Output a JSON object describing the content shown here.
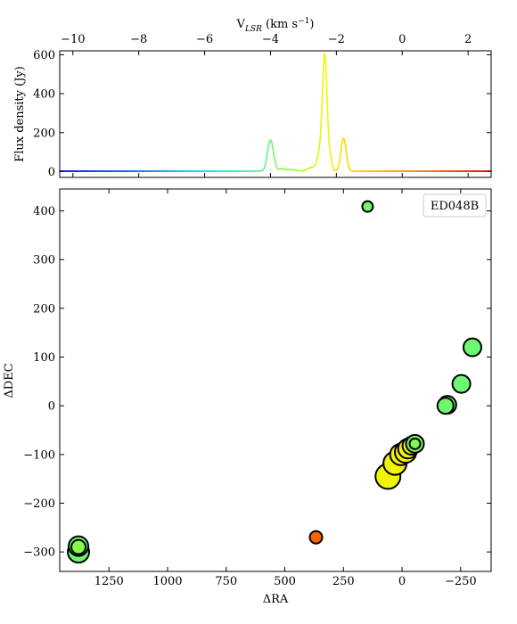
{
  "chart_data": [
    {
      "type": "line",
      "panel": "spectrum",
      "title": "",
      "xlabel_top_base": "V",
      "xlabel_top_sub": "LSR",
      "xlabel_top_units": " (km s",
      "xlabel_top_exp": "−1",
      "xlabel_top_close": ")",
      "ylabel": "Flux density (Jy)",
      "xlim": [
        -10.4,
        2.7
      ],
      "ylim": [
        -30,
        620
      ],
      "xticks": [
        -10,
        -8,
        -6,
        -4,
        -2,
        0,
        2
      ],
      "xtick_labels": [
        "−10",
        "−8",
        "−6",
        "−4",
        "−2",
        "0",
        "2"
      ],
      "yticks": [
        0,
        200,
        400,
        600
      ],
      "ytick_labels": [
        "0",
        "200",
        "400",
        "600"
      ],
      "color_range": [
        -10.4,
        2.7
      ],
      "x_range": [
        -10.4,
        2.7
      ],
      "baseline": 2,
      "peaks": [
        {
          "center": -4.0,
          "height": 160,
          "width": 0.09
        },
        {
          "center": -3.65,
          "height": 12,
          "width": 0.1
        },
        {
          "center": -3.35,
          "height": 8,
          "width": 0.12
        },
        {
          "center": -2.75,
          "height": 20,
          "width": 0.12
        },
        {
          "center": -2.5,
          "height": 90,
          "width": 0.08
        },
        {
          "center": -2.35,
          "height": 590,
          "width": 0.07
        },
        {
          "center": -2.18,
          "height": 60,
          "width": 0.05
        },
        {
          "center": -1.78,
          "height": 170,
          "width": 0.08
        }
      ]
    },
    {
      "type": "scatter",
      "panel": "map",
      "xlabel": "ΔRA",
      "ylabel": "ΔDEC",
      "legend_label": "ED048B",
      "legend_position": "top-right",
      "xlim": [
        1460,
        -380
      ],
      "ylim": [
        -340,
        445
      ],
      "xticks": [
        1250,
        1000,
        750,
        500,
        250,
        0,
        -250
      ],
      "xtick_labels": [
        "1250",
        "1000",
        "750",
        "500",
        "250",
        "0",
        "−250"
      ],
      "yticks": [
        -300,
        -200,
        -100,
        0,
        100,
        200,
        300,
        400
      ],
      "ytick_labels": [
        "−300",
        "−200",
        "−100",
        "0",
        "100",
        "200",
        "300",
        "400"
      ],
      "color_scale": "velocity (km s−1), same colormap as spectrum",
      "points": [
        {
          "x": 147,
          "y": 409,
          "v": -4.0,
          "size": 6
        },
        {
          "x": 1380,
          "y": -300,
          "v": -4.0,
          "size": 12
        },
        {
          "x": 1380,
          "y": -288,
          "v": -4.0,
          "size": 11
        },
        {
          "x": 1380,
          "y": -290,
          "v": -3.6,
          "size": 8
        },
        {
          "x": 367,
          "y": -270,
          "v": 0.8,
          "size": 7
        },
        {
          "x": -300,
          "y": 120,
          "v": -4.0,
          "size": 10
        },
        {
          "x": -253,
          "y": 45,
          "v": -4.0,
          "size": 10
        },
        {
          "x": -193,
          "y": 2,
          "v": -4.0,
          "size": 10
        },
        {
          "x": -185,
          "y": 0,
          "v": -4.0,
          "size": 9
        },
        {
          "x": 60,
          "y": -145,
          "v": -2.35,
          "size": 14
        },
        {
          "x": 30,
          "y": -118,
          "v": -2.35,
          "size": 13
        },
        {
          "x": 5,
          "y": -100,
          "v": -2.3,
          "size": 12
        },
        {
          "x": -15,
          "y": -95,
          "v": -2.3,
          "size": 12
        },
        {
          "x": -25,
          "y": -88,
          "v": -2.2,
          "size": 11
        },
        {
          "x": -40,
          "y": -82,
          "v": -2.4,
          "size": 10
        },
        {
          "x": -55,
          "y": -78,
          "v": -3.9,
          "size": 10
        },
        {
          "x": -55,
          "y": -78,
          "v": -3.7,
          "size": 6
        }
      ]
    }
  ]
}
